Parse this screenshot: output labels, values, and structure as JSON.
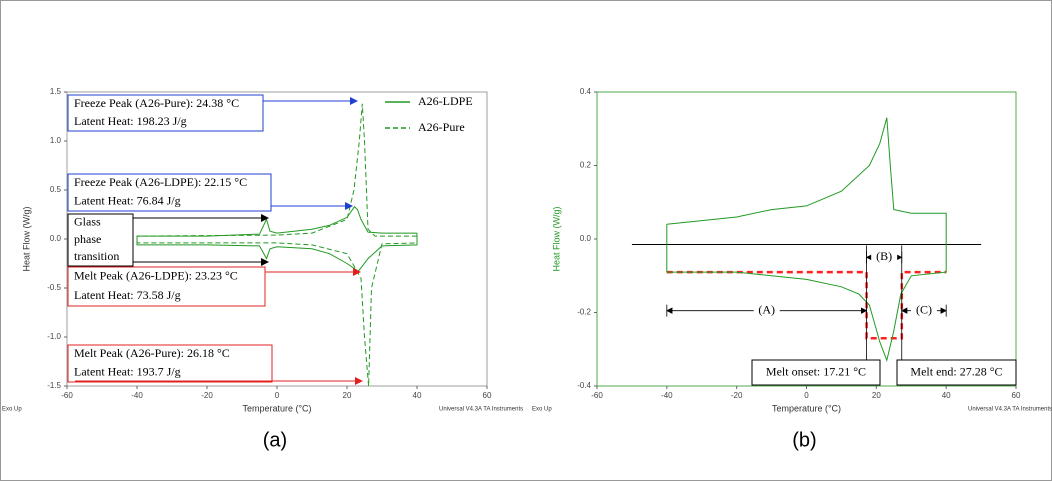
{
  "chart_data": [
    {
      "type": "line",
      "panel_label": "(a)",
      "x_label": "Temperature (°C)",
      "y_label": "Heat Flow (W/g)",
      "corner_left": "Exo Up",
      "corner_right": "Universal V4.3A TA Instruments",
      "xlim": [
        -60,
        60
      ],
      "xticks": [
        -60,
        -40,
        -20,
        0,
        20,
        40,
        60
      ],
      "ylim": [
        -1.5,
        1.5
      ],
      "yticks": [
        -1.5,
        {
          "value": -1,
          "label": "-1.0"
        },
        -0.5,
        {
          "value": 0,
          "label": "0.0"
        },
        0.5,
        {
          "value": 1,
          "label": "1.0"
        },
        1.5
      ],
      "legend": "upper right",
      "series": [
        {
          "name": "A26-LDPE",
          "color": "#229922",
          "dashed": false,
          "x": [
            40,
            30,
            26,
            24,
            23,
            22.15,
            20,
            15,
            10,
            0,
            -2,
            -3,
            -5,
            -20,
            -40,
            -40,
            -20,
            -5,
            -3,
            -2,
            0,
            10,
            15,
            20,
            23.23,
            26,
            30,
            40,
            40
          ],
          "values": [
            0.06,
            0.06,
            0.07,
            0.2,
            0.3,
            0.33,
            0.22,
            0.14,
            0.1,
            0.06,
            0.08,
            0.2,
            0.05,
            0.03,
            0.03,
            -0.06,
            -0.06,
            -0.07,
            -0.2,
            -0.1,
            -0.08,
            -0.1,
            -0.15,
            -0.25,
            -0.33,
            -0.2,
            -0.07,
            -0.06,
            0.06
          ]
        },
        {
          "name": "A26-Pure",
          "color": "#229922",
          "dashed": true,
          "x": [
            40,
            28,
            26,
            25,
            24.38,
            23.5,
            22,
            20,
            10,
            0,
            -40,
            -40,
            0,
            10,
            20,
            24,
            25,
            26.18,
            27,
            30,
            40
          ],
          "values": [
            0.03,
            0.03,
            0.1,
            1.0,
            1.38,
            1.0,
            0.5,
            0.2,
            0.06,
            0.04,
            0.03,
            -0.04,
            -0.04,
            -0.06,
            -0.15,
            -0.4,
            -1.0,
            -1.5,
            -0.5,
            -0.05,
            -0.04
          ]
        }
      ],
      "annotations": [
        {
          "color": "#1f3fd0",
          "lines": [
            "Freeze Peak (A26-Pure): 24.38 °C",
            "Latent Heat: 198.23 J/g"
          ]
        },
        {
          "color": "#1f3fd0",
          "lines": [
            "Freeze Peak (A26-LDPE): 22.15 °C",
            "Latent Heat: 76.84 J/g"
          ]
        },
        {
          "color": "#000000",
          "lines": [
            "Glass",
            "phase",
            "transition"
          ]
        },
        {
          "color": "#e02020",
          "lines": [
            "Melt Peak (A26-LDPE): 23.23 °C",
            "Latent Heat: 73.58 J/g"
          ]
        },
        {
          "color": "#e02020",
          "lines": [
            "Melt Peak (A26-Pure): 26.18 °C",
            "Latent Heat: 193.7 J/g"
          ]
        }
      ]
    },
    {
      "type": "line",
      "panel_label": "(b)",
      "x_label": "Temperature (°C)",
      "y_label": "Heat Flow (W/g)",
      "corner_left": "Exo Up",
      "corner_right": "Universal V4.3A TA Instruments",
      "xlim": [
        -60,
        60
      ],
      "xticks": [
        -60,
        -40,
        -20,
        0,
        20,
        40,
        60
      ],
      "ylim": [
        -0.4,
        0.4
      ],
      "yticks": [
        -0.4,
        -0.2,
        {
          "value": 0,
          "label": "0.0"
        },
        0.2,
        0.4
      ],
      "series": [
        {
          "color": "#229922",
          "dashed": false,
          "x": [
            -40,
            -30,
            -20,
            -10,
            0,
            10,
            18,
            21,
            23,
            24,
            25,
            30,
            35,
            40,
            40,
            30,
            27,
            25,
            23,
            21,
            18,
            15,
            10,
            0,
            -10,
            -20,
            -40,
            -40
          ],
          "values": [
            0.04,
            0.05,
            0.06,
            0.08,
            0.09,
            0.13,
            0.2,
            0.26,
            0.33,
            0.2,
            0.08,
            0.07,
            0.07,
            0.07,
            -0.09,
            -0.1,
            -0.15,
            -0.25,
            -0.33,
            -0.28,
            -0.18,
            -0.15,
            -0.13,
            -0.11,
            -0.1,
            -0.09,
            -0.09,
            0.04
          ]
        }
      ],
      "reference_lines": [
        {
          "color": "#000000",
          "dashed": false,
          "x": [
            -50,
            50
          ],
          "values": [
            -0.015,
            -0.015
          ]
        },
        {
          "color": "#ff2020",
          "dashed": true,
          "x": [
            -40,
            17.21,
            17.21,
            27.28,
            27.28,
            40
          ],
          "values": [
            -0.09,
            -0.09,
            -0.27,
            -0.27,
            -0.09,
            -0.09
          ]
        }
      ],
      "dimensions": [
        {
          "label": "(A)",
          "from": -40,
          "to": 17.21,
          "y": -0.195
        },
        {
          "label": "(B)",
          "from": 17.21,
          "to": 27.28,
          "y": -0.05
        },
        {
          "label": "(C)",
          "from": 27.28,
          "to": 40,
          "y": -0.195
        }
      ],
      "boxes": [
        {
          "text": "Melt onset: 17.21 °C"
        },
        {
          "text": "Melt end: 27.28 °C"
        }
      ]
    }
  ]
}
